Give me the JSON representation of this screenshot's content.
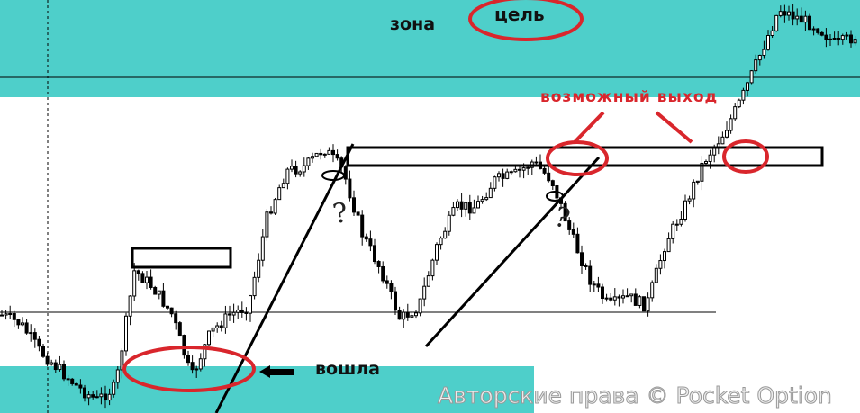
{
  "colors": {
    "zone": "#4ecfca",
    "annotation": "#d9262c",
    "candle": "#000000",
    "watermark": "#e8e8e8"
  },
  "labels": {
    "zone": "зона",
    "target": "цель",
    "possible_exit": "возможный выход",
    "entered": "вошла",
    "question_1": "?",
    "question_2": "?"
  },
  "watermark": "Авторские права © Pocket Option",
  "chart_data": {
    "type": "candlestick",
    "title": "",
    "xlabel": "",
    "ylabel": "",
    "grid": false,
    "levels": [
      23.7,
      21.6,
      15.0,
      10.7,
      6.3,
      3.1,
      6.3,
      34.6,
      30.3,
      23.7,
      8.5,
      19.4,
      23.7,
      25.9,
      47.7,
      58.6,
      59.7,
      64.1,
      58.6,
      43.4,
      34.6,
      22.7,
      25.9,
      41.2,
      49.9,
      49.9,
      56.4,
      57.5,
      60.8,
      56.4,
      43.4,
      32.5,
      25.9,
      28.1,
      25.9,
      41.2,
      49.9,
      60.8,
      67.3,
      76.0,
      86.9,
      97.8,
      95.6,
      93.5,
      89.1,
      91.3
    ]
  }
}
